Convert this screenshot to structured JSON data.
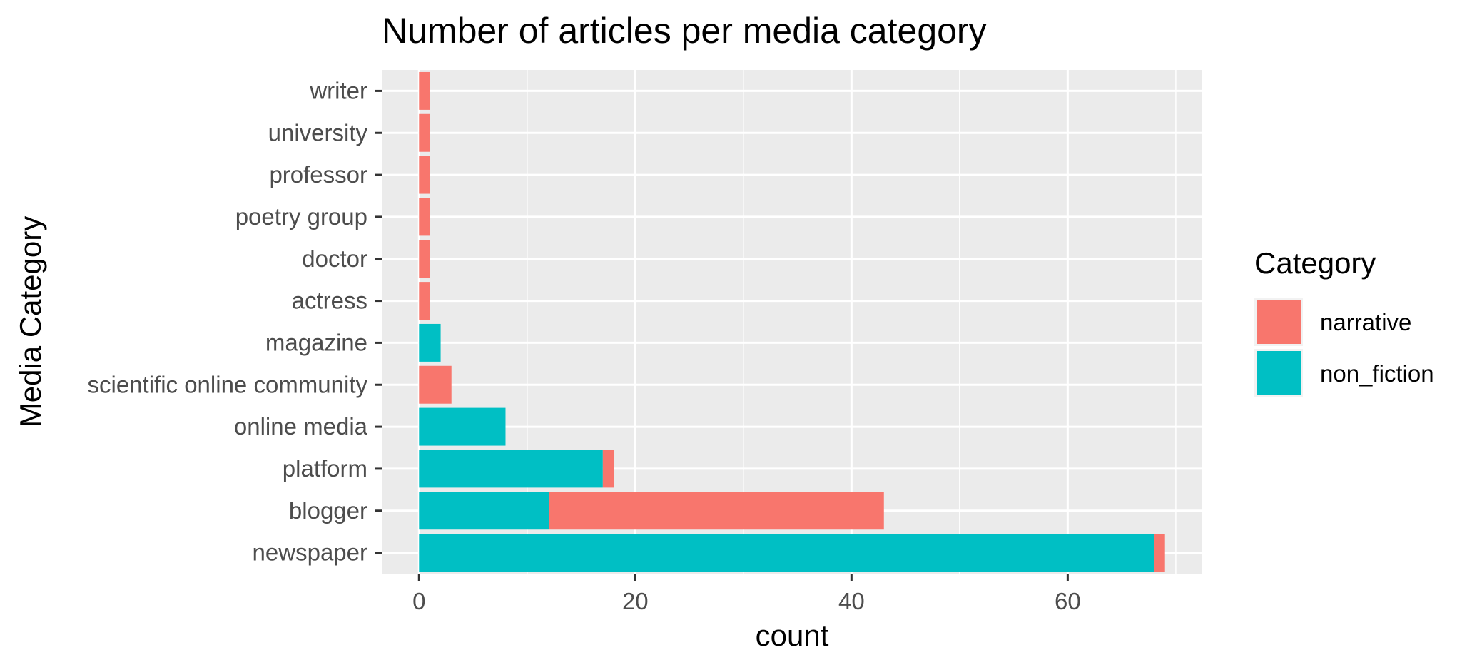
{
  "chart_data": {
    "type": "bar",
    "orientation": "horizontal",
    "stacked": true,
    "title": "Number of articles per media category",
    "xlabel": "count",
    "ylabel": "Media Category",
    "categories": [
      "newspaper",
      "blogger",
      "platform",
      "online media",
      "scientific online community",
      "magazine",
      "actress",
      "doctor",
      "poetry group",
      "professor",
      "university",
      "writer"
    ],
    "series": [
      {
        "name": "non_fiction",
        "color": "#00BFC4",
        "values": [
          68,
          12,
          17,
          8,
          0,
          2,
          0,
          0,
          0,
          0,
          0,
          0
        ]
      },
      {
        "name": "narrative",
        "color": "#F8766D",
        "values": [
          1,
          31,
          1,
          0,
          3,
          0,
          1,
          1,
          1,
          1,
          1,
          1
        ]
      }
    ],
    "xlim": [
      -3.45,
      72.45
    ],
    "xticks": [
      0,
      20,
      40,
      60
    ],
    "grid": true,
    "legend": {
      "title": "Category",
      "placement": "right",
      "entries": [
        {
          "label": "narrative",
          "color": "#F8766D"
        },
        {
          "label": "non_fiction",
          "color": "#00BFC4"
        }
      ]
    }
  }
}
